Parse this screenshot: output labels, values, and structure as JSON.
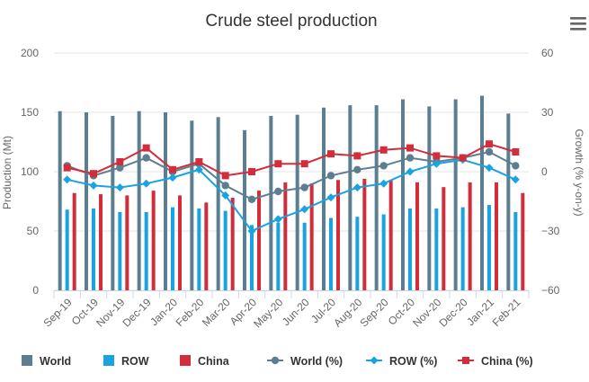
{
  "chart_data": {
    "type": "bar",
    "title": "Crude steel production",
    "ylabel_left": "Production (Mt)",
    "ylabel_right": "Growth (% y-on-y)",
    "ylim_left": [
      0,
      200
    ],
    "yticks_left": [
      "0",
      "50",
      "100",
      "150",
      "200"
    ],
    "ylim_right": [
      -60,
      60
    ],
    "yticks_right": [
      "−60",
      "−30",
      "0",
      "30",
      "60"
    ],
    "grid": true,
    "legend_position": "bottom",
    "categories": [
      "Sep-19",
      "Oct-19",
      "Nov-19",
      "Dec-19",
      "Jan-20",
      "Feb-20",
      "Mar-20",
      "Apr-20",
      "May-20",
      "Jun-20",
      "Jul-20",
      "Aug-20",
      "Sep-20",
      "Oct-20",
      "Nov-20",
      "Dec-20",
      "Jan-21",
      "Feb-21"
    ],
    "bar_series": [
      {
        "name": "World",
        "color": "#5b7f91",
        "values": [
          151,
          150,
          147,
          151,
          150,
          143,
          146,
          135,
          147,
          148,
          154,
          156,
          156,
          161,
          155,
          161,
          164,
          149
        ]
      },
      {
        "name": "ROW",
        "color": "#1aa3e3",
        "values": [
          68,
          69,
          66,
          66,
          70,
          69,
          67,
          55,
          57,
          57,
          61,
          62,
          64,
          69,
          69,
          70,
          72,
          66
        ]
      },
      {
        "name": "China",
        "color": "#d32d3c",
        "values": [
          82,
          81,
          80,
          84,
          80,
          74,
          78,
          84,
          91,
          90,
          93,
          94,
          93,
          91,
          87,
          91,
          91,
          82
        ]
      }
    ],
    "line_series": [
      {
        "name": "World (%)",
        "color": "#5b7f91",
        "marker": "circle",
        "values": [
          3,
          -2,
          2,
          7,
          0,
          4,
          -7,
          -14,
          -10,
          -8,
          -2,
          1,
          3,
          7,
          5,
          7,
          10,
          3
        ]
      },
      {
        "name": "ROW (%)",
        "color": "#1aa3e3",
        "marker": "diamond",
        "values": [
          -4,
          -7,
          -8,
          -6,
          -3,
          1,
          -12,
          -30,
          -24,
          -19,
          -13,
          -8,
          -6,
          0,
          4,
          6,
          2,
          -4
        ]
      },
      {
        "name": "China (%)",
        "color": "#d32d3c",
        "marker": "square",
        "values": [
          2,
          -1,
          5,
          12,
          1,
          5,
          -2,
          0,
          4,
          4,
          9,
          8,
          11,
          12,
          8,
          7,
          14,
          10
        ]
      }
    ]
  },
  "menu": {
    "icon": "hamburger-menu-icon"
  }
}
